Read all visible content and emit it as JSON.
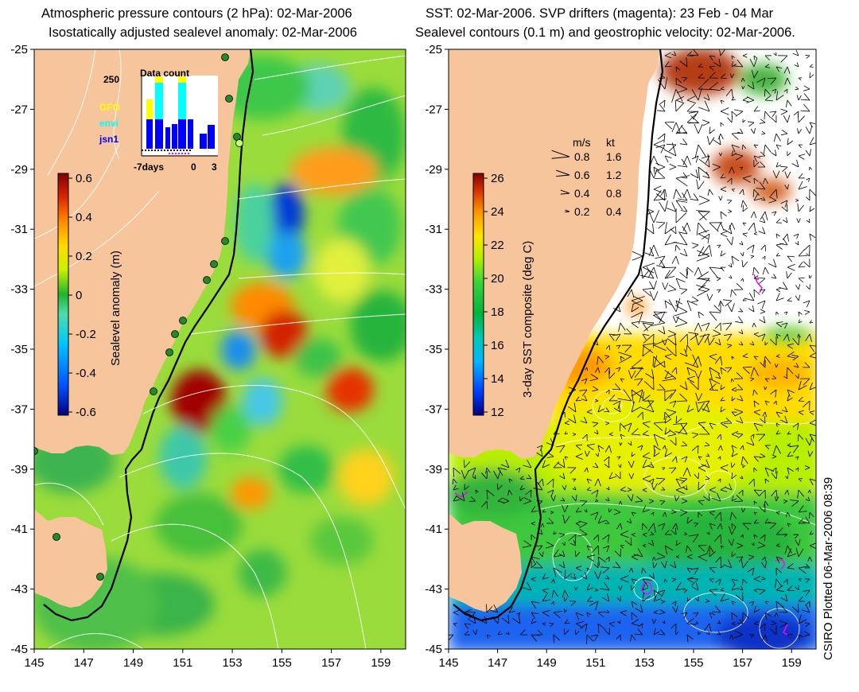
{
  "left_panel": {
    "title_line1": "Atmospheric pressure contours (2 hPa): 02-Mar-2006",
    "title_line2": "Isostatically adjusted sealevel anomaly: 02-Mar-2006",
    "colorbar": {
      "label": "Sealevel anomaly (m)",
      "ticks": [
        "0.6",
        "0.4",
        "0.2",
        "0",
        "-0.2",
        "-0.4",
        "-0.6"
      ],
      "range": [
        -0.6,
        0.6
      ]
    },
    "y_ticks": [
      "-25",
      "-27",
      "-29",
      "-31",
      "-33",
      "-35",
      "-37",
      "-39",
      "-41",
      "-43",
      "-45"
    ],
    "x_ticks": [
      "145",
      "147",
      "149",
      "151",
      "153",
      "155",
      "157",
      "159"
    ],
    "inset": {
      "title": "Data count",
      "ymax_label": "250",
      "legend": [
        {
          "name": "GFO",
          "color": "#ffff00"
        },
        {
          "name": "envi",
          "color": "#00ffff"
        },
        {
          "name": "jsn1",
          "color": "#0000ff"
        }
      ],
      "x_labels": [
        "-7days",
        "0",
        "3"
      ]
    }
  },
  "right_panel": {
    "title_line1": "SST: 02-Mar-2006. SVP drifters (magenta): 23 Feb - 04 Mar",
    "title_line2": "Sealevel contours (0.1 m) and geostrophic velocity: 02-Mar-2006.",
    "colorbar": {
      "label": "3-day SST composite (deg C)",
      "ticks": [
        "26",
        "24",
        "22",
        "20",
        "18",
        "16",
        "14",
        "12"
      ],
      "range": [
        12,
        27
      ]
    },
    "y_ticks": [
      "-25",
      "-27",
      "-29",
      "-31",
      "-33",
      "-35",
      "-37",
      "-39",
      "-41",
      "-43",
      "-45"
    ],
    "x_ticks": [
      "145",
      "147",
      "149",
      "151",
      "153",
      "155",
      "157",
      "159"
    ],
    "velocity_key": {
      "header_ms": "m/s",
      "header_kt": "kt",
      "rows": [
        {
          "ms": "0.8",
          "kt": "1.6"
        },
        {
          "ms": "0.6",
          "kt": "1.2"
        },
        {
          "ms": "0.4",
          "kt": "0.8"
        },
        {
          "ms": "0.2",
          "kt": "0.4"
        }
      ]
    }
  },
  "credit": "CSIRO Plotted 06-Mar-2006 08:39",
  "colors": {
    "land": "#f7c59b",
    "anomaly_scale": [
      "#00007f",
      "#0050ff",
      "#00c8ff",
      "#50dcaa",
      "#1eb432",
      "#c8f000",
      "#ffdc00",
      "#ff8c00",
      "#dc2800",
      "#820000"
    ],
    "sst_scale": [
      "#00007f",
      "#0040ff",
      "#00b4ff",
      "#00c8b4",
      "#00b43c",
      "#3cd23c",
      "#b4f000",
      "#ffe600",
      "#ff9600",
      "#d23200",
      "#820000"
    ]
  }
}
